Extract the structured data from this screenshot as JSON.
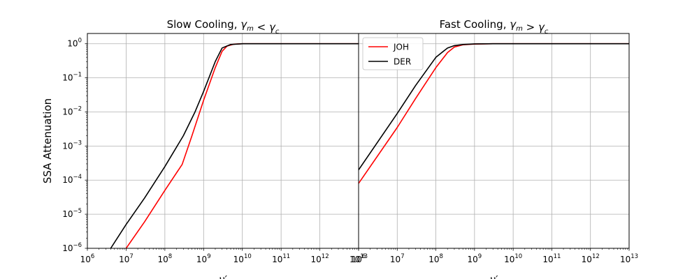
{
  "ylabel": "SSA Attenuation",
  "chart_data": [
    {
      "type": "line",
      "title": "Slow Cooling, γm < γc",
      "xlabel": "ν′",
      "ylabel": "SSA Attenuation",
      "xscale": "log",
      "yscale": "log",
      "xlim": [
        1000000.0,
        10000000000000.0
      ],
      "ylim": [
        1e-06,
        2
      ],
      "xticks": [
        {
          "b": "10",
          "e": "6"
        },
        {
          "b": "10",
          "e": "7"
        },
        {
          "b": "10",
          "e": "8"
        },
        {
          "b": "10",
          "e": "9"
        },
        {
          "b": "10",
          "e": "10"
        },
        {
          "b": "10",
          "e": "11"
        },
        {
          "b": "10",
          "e": "12"
        },
        {
          "b": "10",
          "e": "13"
        }
      ],
      "yticks": [
        {
          "b": "10",
          "e": "−6"
        },
        {
          "b": "10",
          "e": "−5"
        },
        {
          "b": "10",
          "e": "−4"
        },
        {
          "b": "10",
          "e": "−3"
        },
        {
          "b": "10",
          "e": "−2"
        },
        {
          "b": "10",
          "e": "−1"
        },
        {
          "b": "10",
          "e": "0"
        }
      ],
      "grid": true,
      "legend": null,
      "series": [
        {
          "name": "JOH",
          "color": "#ff0000",
          "x": [
            10000000.0,
            30000000.0,
            100000000.0,
            280000000.0,
            500000000.0,
            1000000000.0,
            2000000000.0,
            3000000000.0,
            4000000000.0,
            6000000000.0,
            10000000000.0,
            10000000000000.0
          ],
          "y": [
            1e-06,
            6e-06,
            5e-05,
            0.00029,
            0.002,
            0.022,
            0.2,
            0.6,
            0.85,
            0.97,
            1.0,
            1.0
          ]
        },
        {
          "name": "DER",
          "color": "#000000",
          "x": [
            4000000.0,
            10000000.0,
            30000000.0,
            100000000.0,
            300000000.0,
            600000000.0,
            1000000000.0,
            2000000000.0,
            3000000000.0,
            5000000000.0,
            10000000000.0,
            10000000000000.0
          ],
          "y": [
            1e-06,
            5e-06,
            3e-05,
            0.00025,
            0.002,
            0.01,
            0.04,
            0.3,
            0.75,
            0.95,
            1.0,
            1.0
          ]
        }
      ]
    },
    {
      "type": "line",
      "title": "Fast Cooling, γm > γc",
      "xlabel": "ν′",
      "xscale": "log",
      "yscale": "log",
      "xlim": [
        1000000.0,
        10000000000000.0
      ],
      "ylim": [
        1e-06,
        2
      ],
      "xticks": [
        {
          "b": "10",
          "e": "6"
        },
        {
          "b": "10",
          "e": "7"
        },
        {
          "b": "10",
          "e": "8"
        },
        {
          "b": "10",
          "e": "9"
        },
        {
          "b": "10",
          "e": "10"
        },
        {
          "b": "10",
          "e": "11"
        },
        {
          "b": "10",
          "e": "12"
        },
        {
          "b": "10",
          "e": "13"
        }
      ],
      "grid": true,
      "legend": "top-left",
      "series": [
        {
          "name": "JOH",
          "color": "#ff0000",
          "x": [
            1000000.0,
            10000000.0,
            30000000.0,
            100000000.0,
            200000000.0,
            300000000.0,
            500000000.0,
            1000000000.0,
            3000000000.0,
            10000000000.0,
            10000000000000.0
          ],
          "y": [
            8e-05,
            0.0035,
            0.025,
            0.2,
            0.55,
            0.8,
            0.93,
            0.98,
            1.0,
            1.0,
            1.0
          ]
        },
        {
          "name": "DER",
          "color": "#000000",
          "x": [
            1000000.0,
            10000000.0,
            30000000.0,
            100000000.0,
            200000000.0,
            300000000.0,
            500000000.0,
            1000000000.0,
            3000000000.0,
            10000000000.0,
            10000000000000.0
          ],
          "y": [
            0.0002,
            0.009,
            0.06,
            0.4,
            0.75,
            0.88,
            0.95,
            0.99,
            1.0,
            1.0,
            1.0
          ]
        }
      ]
    }
  ]
}
